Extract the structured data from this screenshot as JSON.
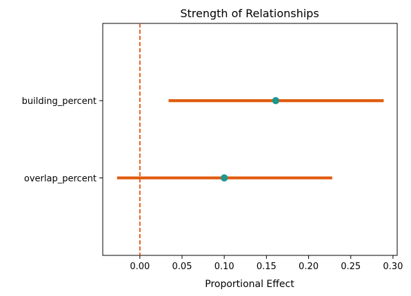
{
  "chart_data": {
    "type": "forest",
    "title": "Strength of Relationships",
    "xlabel": "Proportional Effect",
    "ylabel": "",
    "xlim": [
      -0.044,
      0.305
    ],
    "xticks": [
      0.0,
      0.05,
      0.1,
      0.15,
      0.2,
      0.25,
      0.3
    ],
    "xtick_labels": [
      "0.00",
      "0.05",
      "0.10",
      "0.15",
      "0.20",
      "0.25",
      "0.30"
    ],
    "reference_line": {
      "x": 0,
      "style": "dashed",
      "color": "#e65100"
    },
    "grid": false,
    "points": [
      {
        "label": "building_percent",
        "estimate": 0.161,
        "lower": 0.034,
        "upper": 0.289
      },
      {
        "label": "overlap_percent",
        "estimate": 0.1,
        "lower": -0.027,
        "upper": 0.228
      }
    ],
    "colors": {
      "interval": "#e05a0c",
      "point": "#20968c",
      "reference": "#e65100"
    }
  }
}
